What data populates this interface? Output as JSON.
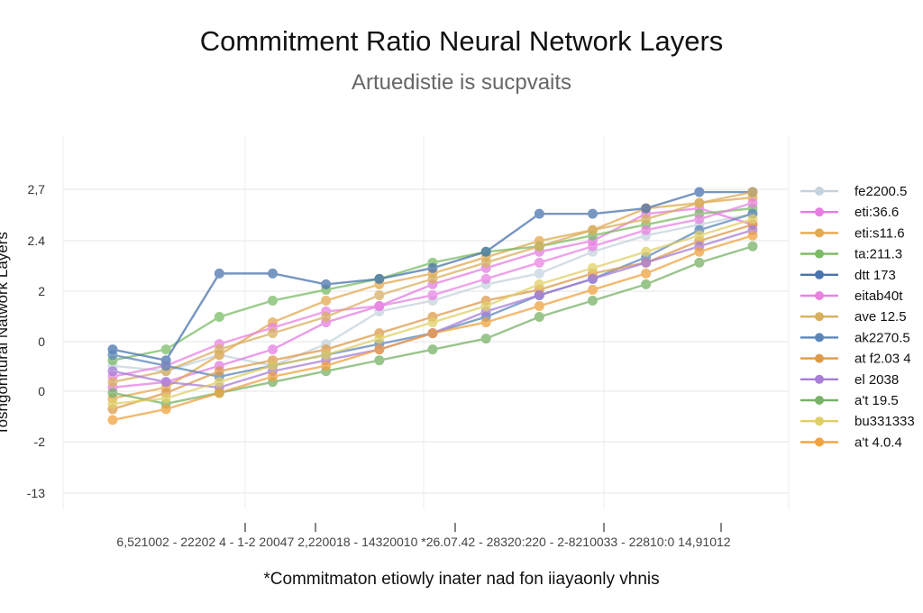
{
  "chart_data": {
    "type": "line",
    "title": "Commitment Ratio Neural Network Layers",
    "subtitle": "Artuedistie is sucpvaits",
    "ylabel": "Tosngonrtural Natwork Layers",
    "xlabel": "",
    "footnote": "*Commitmaton etiowly inater nad fon iiayaonly vhnis",
    "xtick_text": "6,521002 - 22202 4 - 1-2 20047   2,220018 - 14320010  *26.07.42 - 28320:220 - 2-8210033 - 22810:0    14,91012",
    "ytick_labels": [
      "2,7",
      "2.4",
      "2",
      "0",
      "0",
      "-2",
      "-13"
    ],
    "ylim": [
      -13,
      2.9
    ],
    "grid": true,
    "legend_position": "right",
    "legend": [
      {
        "label": "fe2200.5",
        "color": "#c5d3de"
      },
      {
        "label": "eti:36.6",
        "color": "#e57de3"
      },
      {
        "label": "eti:s11.6",
        "color": "#e4a94f"
      },
      {
        "label": "ta:211.3",
        "color": "#7cbb66"
      },
      {
        "label": "dtt 173",
        "color": "#4a74ad"
      },
      {
        "label": "eitab40t",
        "color": "#e983e2"
      },
      {
        "label": "ave 12.5",
        "color": "#d8b060"
      },
      {
        "label": "ak2270.5",
        "color": "#5c86ba"
      },
      {
        "label": "at f2.03 4",
        "color": "#dd9a4a"
      },
      {
        "label": "el 2038",
        "color": "#a87ed8"
      },
      {
        "label": "a't 19.5",
        "color": "#78b268"
      },
      {
        "label": "bu331333",
        "color": "#e0cf66"
      },
      {
        "label": "a't 4.0.4",
        "color": "#f0a23e"
      }
    ],
    "x_positions": [
      1,
      2,
      3,
      4,
      5,
      6,
      7,
      8,
      9,
      10,
      11,
      12,
      13
    ],
    "series": [
      {
        "color": "#c5d3de",
        "values": [
          -0.6,
          -0.7,
          -0.4,
          -0.6,
          -0.2,
          0.4,
          0.6,
          0.9,
          1.1,
          1.5,
          1.8,
          2.0,
          2.2
        ]
      },
      {
        "color": "#e57de3",
        "values": [
          -1.0,
          -0.9,
          -0.6,
          -0.3,
          0.2,
          0.5,
          0.9,
          1.2,
          1.5,
          1.7,
          2.2,
          2.3,
          2.0
        ]
      },
      {
        "color": "#e4a94f",
        "values": [
          -1.2,
          -1.0,
          -0.4,
          0.2,
          0.6,
          0.9,
          1.1,
          1.4,
          1.7,
          1.9,
          2.3,
          2.4,
          2.5
        ]
      },
      {
        "color": "#7cbb66",
        "values": [
          -0.5,
          -0.3,
          0.3,
          0.6,
          0.8,
          1.0,
          1.3,
          1.5,
          1.6,
          1.8,
          2.0,
          2.2,
          2.3
        ]
      },
      {
        "color": "#4a74ad",
        "values": [
          -0.3,
          -0.5,
          1.1,
          1.1,
          0.9,
          1.0,
          1.2,
          1.5,
          2.2,
          2.2,
          2.3,
          2.6,
          2.6
        ]
      },
      {
        "color": "#e983e2",
        "values": [
          -0.8,
          -0.6,
          -0.2,
          0.1,
          0.4,
          0.5,
          0.7,
          1.0,
          1.3,
          1.6,
          1.9,
          2.1,
          2.4
        ]
      },
      {
        "color": "#d8b060",
        "values": [
          -0.9,
          -0.7,
          -0.3,
          0.0,
          0.3,
          0.7,
          1.0,
          1.3,
          1.6,
          1.9,
          2.1,
          2.4,
          2.6
        ]
      },
      {
        "color": "#5c86ba",
        "values": [
          -0.4,
          -0.6,
          -0.8,
          -0.6,
          -0.4,
          -0.2,
          0.0,
          0.3,
          0.7,
          1.0,
          1.4,
          1.9,
          2.2
        ]
      },
      {
        "color": "#dd9a4a",
        "values": [
          -1.4,
          -1.1,
          -0.7,
          -0.5,
          -0.3,
          0.0,
          0.3,
          0.6,
          0.8,
          1.1,
          1.3,
          1.7,
          2.0
        ]
      },
      {
        "color": "#a87ed8",
        "values": [
          -0.7,
          -0.9,
          -1.0,
          -0.7,
          -0.5,
          -0.3,
          0.0,
          0.4,
          0.7,
          1.0,
          1.3,
          1.6,
          1.9
        ]
      },
      {
        "color": "#78b268",
        "values": [
          -1.1,
          -1.3,
          -1.1,
          -0.9,
          -0.7,
          -0.5,
          -0.3,
          -0.1,
          0.3,
          0.6,
          0.9,
          1.3,
          1.6
        ]
      },
      {
        "color": "#e0cf66",
        "values": [
          -1.3,
          -1.2,
          -0.9,
          -0.6,
          -0.4,
          -0.1,
          0.2,
          0.5,
          0.9,
          1.2,
          1.5,
          1.8,
          2.1
        ]
      },
      {
        "color": "#f0a23e",
        "values": [
          -1.6,
          -1.4,
          -1.1,
          -0.8,
          -0.6,
          -0.3,
          0.0,
          0.2,
          0.5,
          0.8,
          1.1,
          1.5,
          1.8
        ]
      }
    ]
  }
}
